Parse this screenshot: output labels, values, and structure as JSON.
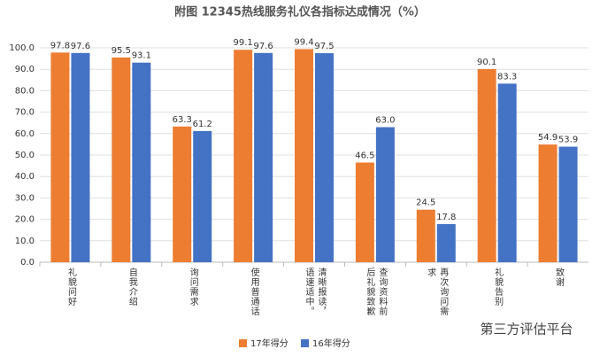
{
  "chart_data": {
    "type": "bar",
    "title": "附图  12345热线服务礼仪各指标达成情况（%）",
    "categories": [
      "礼貌问好",
      "自我介绍",
      "询问需求",
      "使用普通话",
      "清晰报读，语速适中。",
      "查询资料前后礼貌致歉",
      "再次询问需求",
      "礼貌告别",
      "致谢"
    ],
    "series": [
      {
        "name": "17年得分",
        "color": "#ed7d31",
        "values": [
          97.8,
          95.5,
          63.3,
          99.1,
          99.4,
          46.5,
          24.5,
          90.1,
          54.9
        ],
        "value_labels": [
          "97.8",
          "95.5",
          "63.3",
          "99.1",
          "99.4",
          "46.5",
          "24.5",
          "90.1",
          "54.9"
        ]
      },
      {
        "name": "16年得分",
        "color": "#4472c4",
        "values": [
          97.6,
          93.1,
          61.2,
          97.6,
          97.5,
          63.0,
          17.8,
          83.3,
          53.9
        ],
        "value_labels": [
          "97.6",
          "93.1",
          "61.2",
          "97.6",
          "97.5",
          "63.0",
          "17.8",
          "83.3",
          "53.9"
        ]
      }
    ],
    "ylim": [
      0,
      100
    ],
    "yticks": [
      {
        "value": 0,
        "label": "0.0"
      },
      {
        "value": 10,
        "label": "10.0"
      },
      {
        "value": 20,
        "label": "20.0"
      },
      {
        "value": 30,
        "label": "30.0"
      },
      {
        "value": 40,
        "label": "40.0"
      },
      {
        "value": 50,
        "label": "50.0"
      },
      {
        "value": 60,
        "label": "60.0"
      },
      {
        "value": 70,
        "label": "70.0"
      },
      {
        "value": 80,
        "label": "80.0"
      },
      {
        "value": 90,
        "label": "90.0"
      },
      {
        "value": 100,
        "label": "100.0"
      }
    ],
    "grid": true,
    "watermark": "第三方评估平台"
  }
}
